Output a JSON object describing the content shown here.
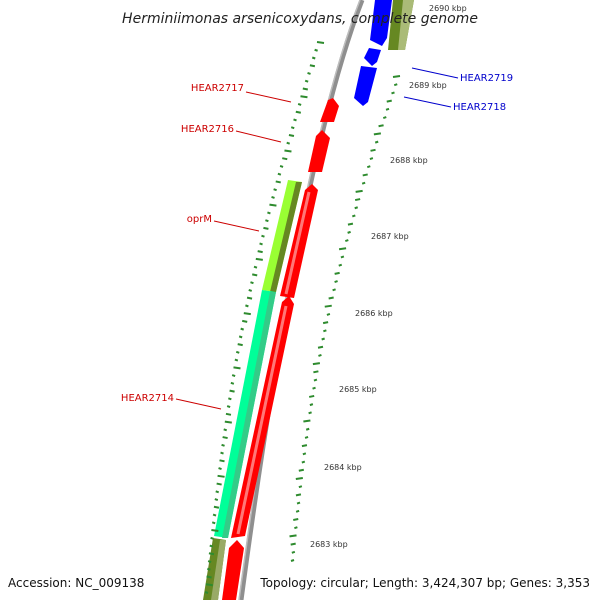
{
  "map": {
    "title": "Herminiimonas arsenicoxydans, complete genome",
    "accession_text": "Accession: NC_009138",
    "summary_text": "Topology: circular; Length: 3,424,307 bp; Genes: 3,353",
    "colors": {
      "backbone": "#8f8f8f",
      "forward_gene": "#ff0000",
      "reverse_gene": "#0000ff",
      "cog_a": "#00ff99",
      "cog_b": "#99ff33",
      "cog_c": "#668822",
      "gc_tick": "#2e8b2e",
      "label_forward": "#cc0000",
      "label_reverse": "#0000cc"
    },
    "ticks": [
      {
        "label": "2690 kbp",
        "faded": true
      },
      {
        "label": "2689 kbp"
      },
      {
        "label": "2688 kbp"
      },
      {
        "label": "2687 kbp"
      },
      {
        "label": "2686 kbp"
      },
      {
        "label": "2685 kbp"
      },
      {
        "label": "2684 kbp"
      },
      {
        "label": "2683 kbp"
      }
    ],
    "gene_labels": [
      {
        "text": "HEAR2717",
        "strand": "forward"
      },
      {
        "text": "HEAR2716",
        "strand": "forward"
      },
      {
        "text": "oprM",
        "strand": "forward"
      },
      {
        "text": "HEAR2714",
        "strand": "forward"
      },
      {
        "text": "HEAR2719",
        "strand": "reverse"
      },
      {
        "text": "HEAR2718",
        "strand": "reverse"
      }
    ]
  }
}
